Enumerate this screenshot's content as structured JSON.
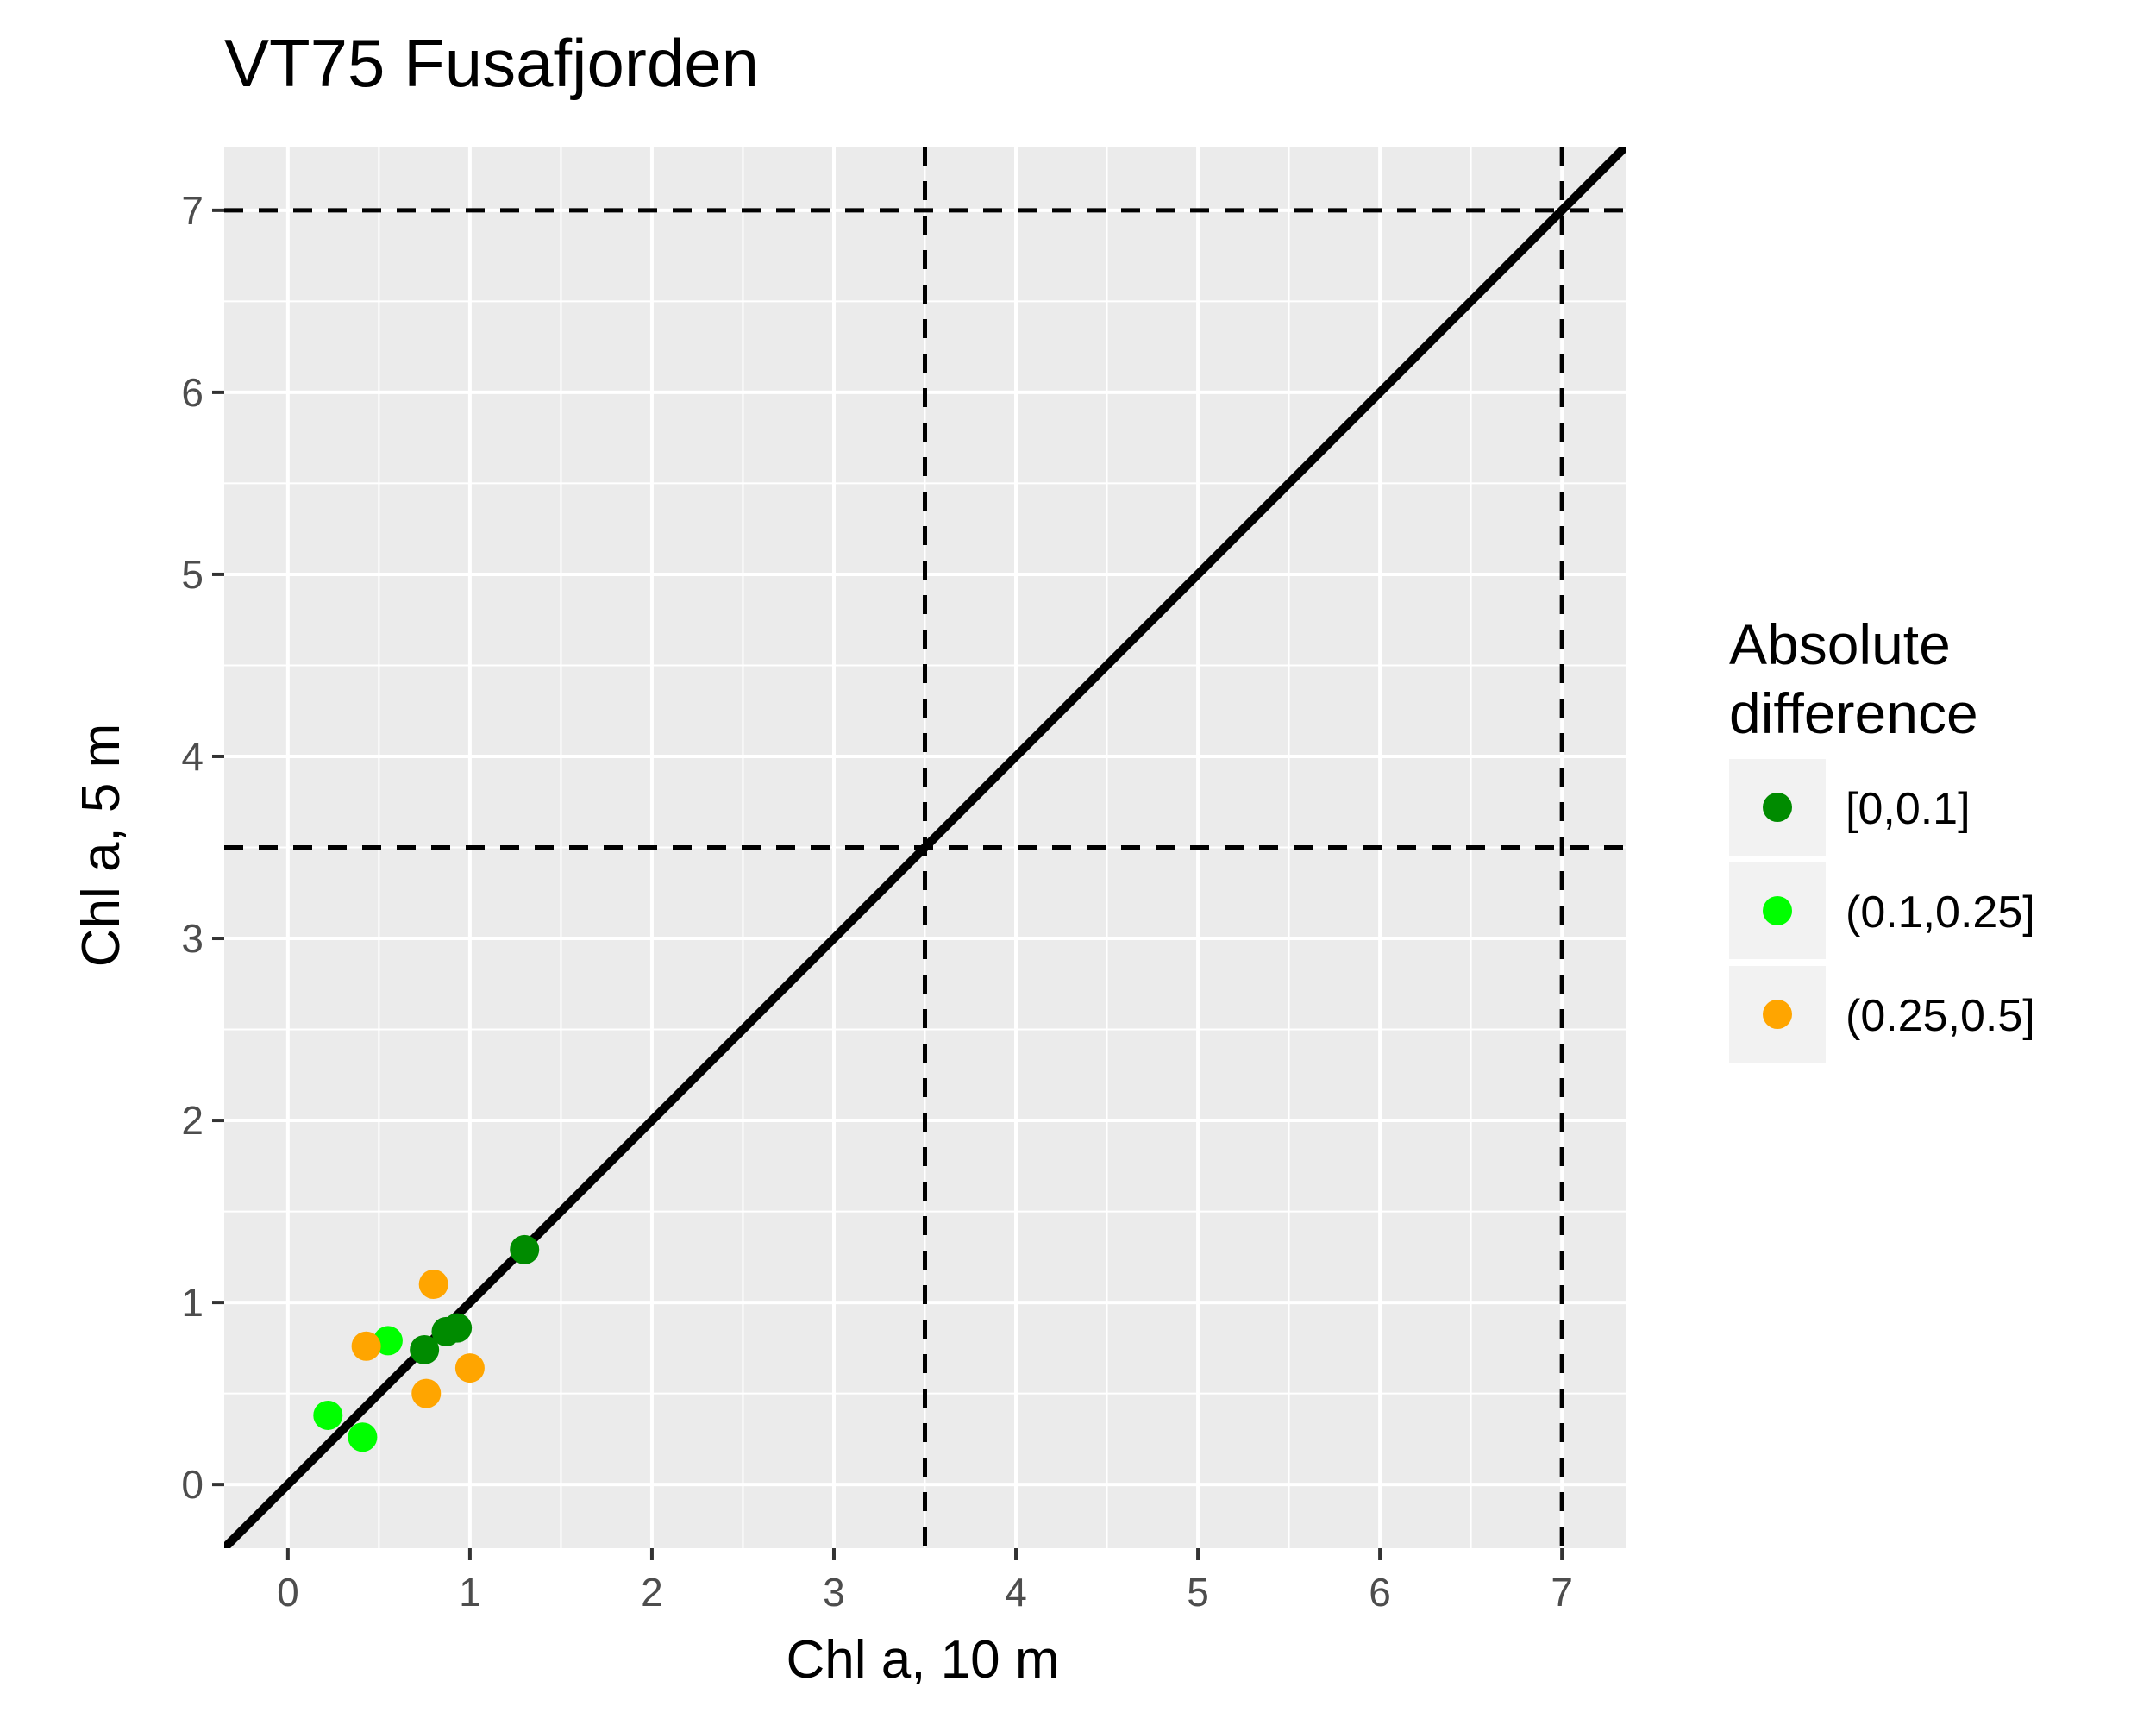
{
  "chart_data": {
    "type": "scatter",
    "title": "VT75 Fusafjorden",
    "xlabel": "Chl a, 10 m",
    "ylabel": "Chl a, 5 m",
    "xlim": [
      -0.35,
      7.35
    ],
    "ylim": [
      -0.35,
      7.35
    ],
    "x_ticks": [
      "0",
      "1",
      "2",
      "3",
      "4",
      "5",
      "6",
      "7"
    ],
    "y_ticks": [
      "0",
      "1",
      "2",
      "3",
      "4",
      "5",
      "6",
      "7"
    ],
    "grid": true,
    "reference_lines": {
      "identity_line": "y = x",
      "vertical_dashed_x": [
        3.5,
        7
      ],
      "horizontal_dashed_y": [
        3.5,
        7
      ]
    },
    "legend": {
      "title_lines": [
        "Absolute",
        "difference"
      ],
      "placement": "right",
      "entries": [
        {
          "label": "[0,0.1]",
          "color": "#008B00"
        },
        {
          "label": "(0.1,0.25]",
          "color": "#00FF00"
        },
        {
          "label": "(0.25,0.5]",
          "color": "#FFA500"
        }
      ]
    },
    "series": [
      {
        "name": "[0,0.1]",
        "color": "#008B00",
        "points": [
          [
            0.75,
            0.74
          ],
          [
            0.87,
            0.84
          ],
          [
            0.93,
            0.86
          ],
          [
            1.3,
            1.29
          ]
        ]
      },
      {
        "name": "(0.1,0.25]",
        "color": "#00FF00",
        "points": [
          [
            0.22,
            0.38
          ],
          [
            0.41,
            0.26
          ],
          [
            0.55,
            0.79
          ]
        ]
      },
      {
        "name": "(0.25,0.5]",
        "color": "#FFA500",
        "points": [
          [
            0.43,
            0.76
          ],
          [
            0.76,
            0.5
          ],
          [
            0.8,
            1.1
          ],
          [
            1.0,
            0.64
          ]
        ]
      }
    ]
  }
}
